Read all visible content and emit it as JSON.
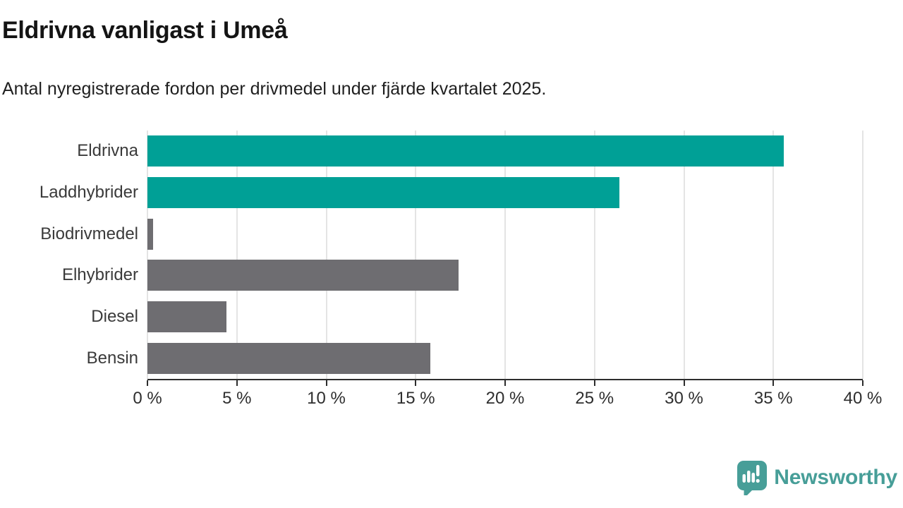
{
  "title": "Eldrivna vanligast i Umeå",
  "subtitle": "Antal nyregistrerade fordon per drivmedel under fjärde kvartalet 2025.",
  "chart_data": {
    "type": "bar",
    "orientation": "horizontal",
    "title": "Eldrivna vanligast i Umeå",
    "subtitle": "Antal nyregistrerade fordon per drivmedel under fjärde kvartalet 2025.",
    "categories": [
      "Eldrivna",
      "Laddhybrider",
      "Biodrivmedel",
      "Elhybrider",
      "Diesel",
      "Bensin"
    ],
    "values": [
      35.6,
      26.4,
      0.3,
      17.4,
      4.4,
      15.8
    ],
    "unit": "%",
    "bar_colors": [
      "#00a096",
      "#00a096",
      "#6e6d71",
      "#6e6d71",
      "#6e6d71",
      "#6e6d71"
    ],
    "highlight_color": "#00a096",
    "default_color": "#6e6d71",
    "xlim": [
      0,
      40
    ],
    "x_ticks": [
      0,
      5,
      10,
      15,
      20,
      25,
      30,
      35,
      40
    ],
    "x_tick_labels": [
      "0 %",
      "5 %",
      "10 %",
      "15 %",
      "20 %",
      "25 %",
      "30 %",
      "35 %",
      "40 %"
    ],
    "grid": "vertical",
    "grid_color": "#e4e4e4",
    "axis_color": "#2d2d2d",
    "legend": "none"
  },
  "logo": {
    "text": "Newsworthy",
    "color": "#479e98"
  }
}
